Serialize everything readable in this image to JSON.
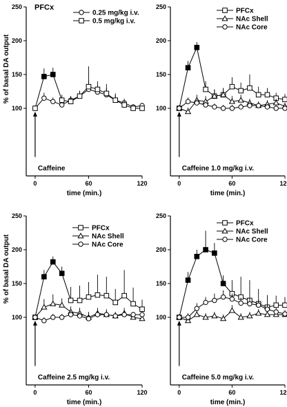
{
  "figure": {
    "ylabel": "% of basal DA output"
  },
  "chart_data": [
    {
      "type": "line",
      "title": "PFCx",
      "xlabel": "time (min.)",
      "ylabel": "% of basal DA output",
      "xlim": [
        -10,
        120
      ],
      "ylim": [
        0,
        250
      ],
      "x_ticks": [
        0,
        60,
        120
      ],
      "y_ticks": [
        100,
        150,
        200,
        250
      ],
      "annotation": "Caffeine",
      "legend_position": "top-right",
      "x": [
        0,
        10,
        20,
        30,
        40,
        50,
        60,
        70,
        80,
        90,
        100,
        110,
        120
      ],
      "series": [
        {
          "name": "0.25 mg/kg i.v.",
          "marker": "circle",
          "values": [
            100,
            115,
            110,
            105,
            112,
            118,
            128,
            124,
            120,
            112,
            108,
            102,
            104
          ],
          "errors": [
            0,
            8,
            6,
            6,
            6,
            8,
            14,
            10,
            10,
            8,
            6,
            4,
            4
          ],
          "filled": []
        },
        {
          "name": "0.5 mg/kg i.v.",
          "marker": "square",
          "values": [
            100,
            147,
            150,
            112,
            110,
            118,
            132,
            128,
            122,
            112,
            105,
            100,
            100
          ],
          "errors": [
            0,
            12,
            10,
            8,
            8,
            8,
            30,
            12,
            14,
            10,
            6,
            4,
            4
          ],
          "filled": [
            1,
            2
          ]
        }
      ]
    },
    {
      "type": "line",
      "title": "",
      "xlabel": "time (min.)",
      "ylabel": "",
      "xlim": [
        -10,
        120
      ],
      "ylim": [
        0,
        250
      ],
      "x_ticks": [
        0,
        60,
        120
      ],
      "y_ticks": [
        100,
        150,
        200,
        250
      ],
      "annotation": "Caffeine 1.0 mg/kg i.v.",
      "legend_position": "top-right",
      "x": [
        0,
        10,
        20,
        30,
        40,
        50,
        60,
        70,
        80,
        90,
        100,
        110,
        120
      ],
      "series": [
        {
          "name": "PFCx",
          "marker": "square",
          "values": [
            100,
            160,
            190,
            128,
            118,
            120,
            132,
            126,
            130,
            120,
            120,
            115,
            113
          ],
          "errors": [
            0,
            10,
            8,
            12,
            10,
            10,
            14,
            12,
            20,
            12,
            10,
            8,
            8
          ],
          "filled": [
            1,
            2
          ]
        },
        {
          "name": "NAc Shell",
          "marker": "triangle",
          "values": [
            100,
            95,
            112,
            110,
            118,
            120,
            110,
            112,
            108,
            104,
            106,
            108,
            103
          ],
          "errors": [
            0,
            6,
            8,
            8,
            10,
            10,
            8,
            8,
            6,
            6,
            6,
            6,
            5
          ],
          "filled": []
        },
        {
          "name": "NAc  Core",
          "marker": "circle",
          "values": [
            100,
            110,
            108,
            105,
            102,
            100,
            100,
            102,
            104,
            104,
            102,
            100,
            100
          ],
          "errors": [
            0,
            6,
            5,
            5,
            5,
            5,
            5,
            5,
            5,
            5,
            4,
            4,
            4
          ],
          "filled": []
        }
      ]
    },
    {
      "type": "line",
      "title": "",
      "xlabel": "time (min.)",
      "ylabel": "% of basal DA output",
      "xlim": [
        -10,
        120
      ],
      "ylim": [
        0,
        250
      ],
      "x_ticks": [
        0,
        60,
        120
      ],
      "y_ticks": [
        100,
        150,
        200,
        250
      ],
      "annotation": "Caffeine 2.5 mg/kg i.v.",
      "legend_position": "top-right",
      "x": [
        0,
        10,
        20,
        30,
        40,
        50,
        60,
        70,
        80,
        90,
        100,
        110,
        120
      ],
      "series": [
        {
          "name": "PFCx",
          "marker": "square",
          "values": [
            100,
            160,
            182,
            165,
            125,
            125,
            130,
            133,
            132,
            122,
            132,
            120,
            112
          ],
          "errors": [
            0,
            10,
            8,
            10,
            20,
            22,
            22,
            30,
            28,
            20,
            38,
            24,
            14
          ],
          "filled": [
            1,
            2,
            3
          ]
        },
        {
          "name": "NAc Shell",
          "marker": "triangle",
          "values": [
            100,
            115,
            120,
            118,
            108,
            106,
            100,
            106,
            104,
            102,
            106,
            100,
            98
          ],
          "errors": [
            0,
            12,
            14,
            10,
            8,
            8,
            8,
            8,
            8,
            6,
            8,
            6,
            5
          ],
          "filled": []
        },
        {
          "name": "NAc Core",
          "marker": "circle",
          "values": [
            100,
            95,
            100,
            100,
            104,
            102,
            98,
            104,
            104,
            102,
            104,
            104,
            104
          ],
          "errors": [
            0,
            5,
            5,
            5,
            5,
            5,
            5,
            5,
            5,
            5,
            5,
            4,
            4
          ],
          "filled": []
        }
      ]
    },
    {
      "type": "line",
      "title": "",
      "xlabel": "time (min.)",
      "ylabel": "",
      "xlim": [
        -10,
        120
      ],
      "ylim": [
        0,
        250
      ],
      "x_ticks": [
        0,
        60,
        120
      ],
      "y_ticks": [
        100,
        150,
        200,
        250
      ],
      "annotation": "Caffeine 5.0 mg/kg i.v.",
      "legend_position": "top-right",
      "x": [
        0,
        10,
        20,
        30,
        40,
        50,
        60,
        70,
        80,
        90,
        100,
        110,
        120
      ],
      "series": [
        {
          "name": "PFCx",
          "marker": "square",
          "values": [
            100,
            155,
            190,
            200,
            195,
            150,
            135,
            130,
            125,
            120,
            115,
            118,
            118
          ],
          "errors": [
            0,
            12,
            10,
            28,
            15,
            12,
            20,
            30,
            30,
            22,
            18,
            14,
            12
          ],
          "filled": [
            1,
            2,
            3,
            4,
            5
          ]
        },
        {
          "name": "NAc Shell",
          "marker": "triangle",
          "values": [
            100,
            95,
            104,
            100,
            102,
            98,
            110,
            100,
            102,
            106,
            104,
            104,
            104
          ],
          "errors": [
            0,
            6,
            6,
            6,
            6,
            6,
            8,
            6,
            6,
            6,
            6,
            5,
            5
          ],
          "filled": []
        },
        {
          "name": "NAc Core",
          "marker": "circle",
          "values": [
            100,
            100,
            113,
            122,
            125,
            130,
            127,
            121,
            120,
            118,
            112,
            108,
            105
          ],
          "errors": [
            0,
            6,
            8,
            8,
            10,
            10,
            8,
            8,
            8,
            8,
            6,
            6,
            6
          ],
          "filled": []
        }
      ]
    }
  ]
}
